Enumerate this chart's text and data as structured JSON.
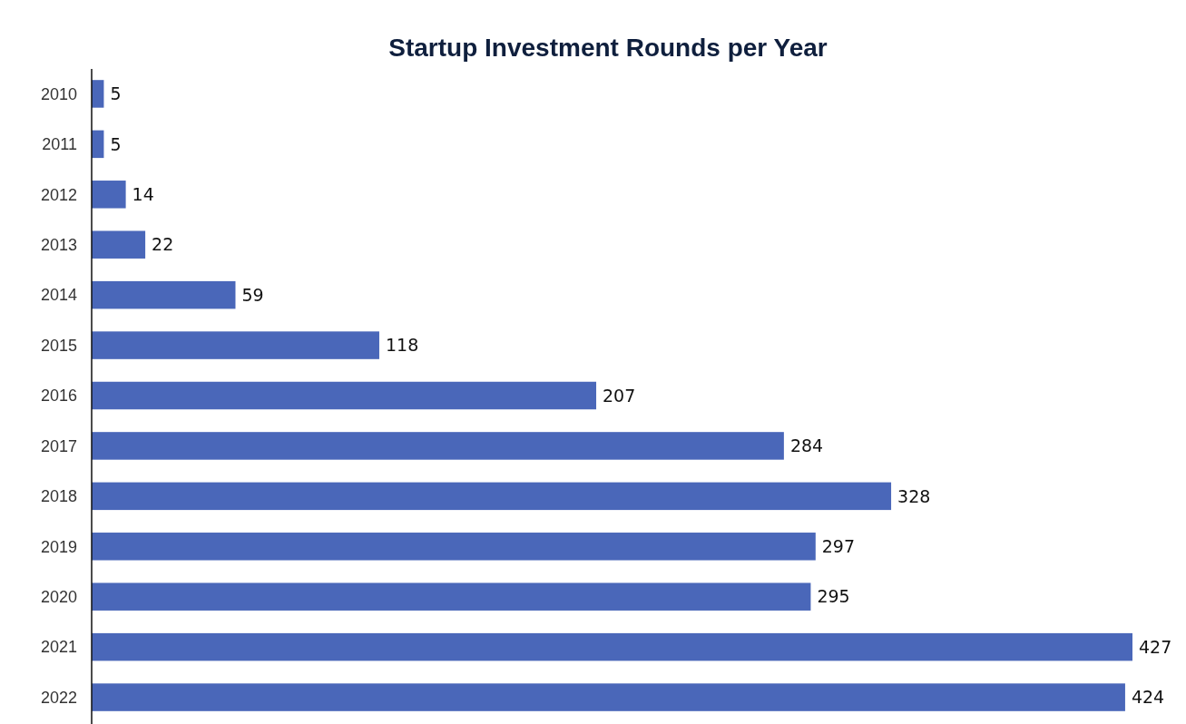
{
  "chart_data": {
    "type": "bar",
    "title": "Startup Investment Rounds per Year",
    "orientation": "horizontal",
    "categories": [
      "2010",
      "2011",
      "2012",
      "2013",
      "2014",
      "2015",
      "2016",
      "2017",
      "2018",
      "2019",
      "2020",
      "2021",
      "2022"
    ],
    "values": [
      5,
      5,
      14,
      22,
      59,
      118,
      207,
      284,
      328,
      297,
      295,
      427,
      424
    ],
    "color": "#4a67b9",
    "data_labels": true
  }
}
